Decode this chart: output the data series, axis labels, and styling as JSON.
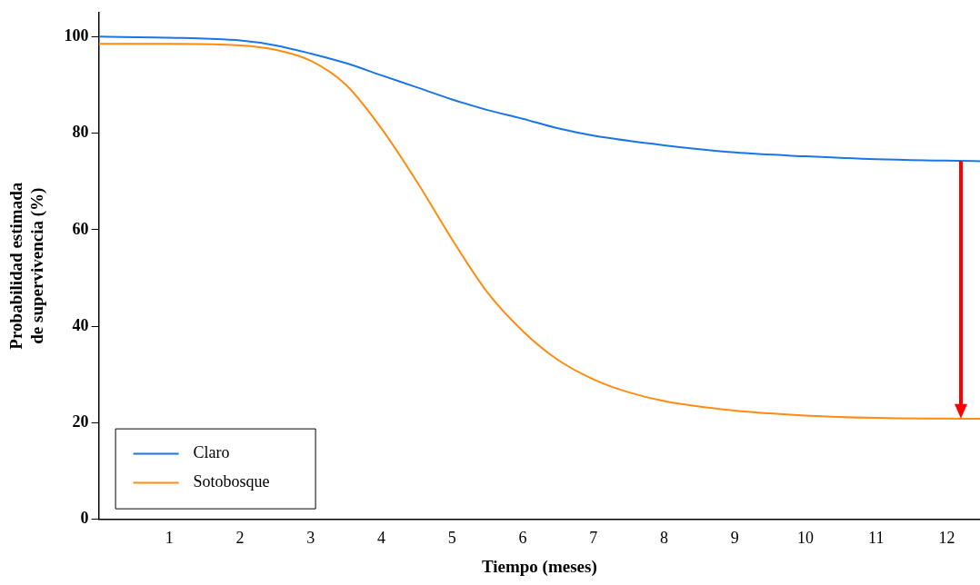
{
  "chart_data": {
    "type": "line",
    "xlabel": "Tiempo (meses)",
    "ylabel": "Probabilidad estimada\nde supervivencia (%)",
    "xlim": [
      0,
      12.47
    ],
    "xticks": [
      {
        "value": 0,
        "label": null
      },
      1,
      2,
      3,
      4,
      5,
      6,
      7,
      8,
      9,
      10,
      11,
      12
    ],
    "ylim": [
      0,
      105
    ],
    "yticks": [
      0,
      20,
      40,
      60,
      80,
      100
    ],
    "grid": false,
    "legend": "bottom left",
    "marker": "none",
    "line_style": "solid",
    "series": [
      {
        "name": "Claro",
        "color": "#1a75e8",
        "x": [
          0,
          1,
          2,
          2.5,
          3,
          3.5,
          4,
          4.5,
          5,
          5.5,
          6,
          6.5,
          7,
          8,
          9,
          10,
          11,
          12.47
        ],
        "values": [
          100,
          99.8,
          99.2,
          98.2,
          96.5,
          94.5,
          92,
          89.5,
          87,
          84.8,
          83,
          81,
          79.5,
          77.5,
          76,
          75.2,
          74.6,
          74.2
        ]
      },
      {
        "name": "Sotobosque",
        "color": "#ff8c10",
        "x": [
          0,
          1,
          2,
          2.5,
          3,
          3.5,
          4,
          4.5,
          5,
          5.5,
          6,
          6.5,
          7,
          7.5,
          8,
          9,
          10,
          11,
          12.47
        ],
        "values": [
          98.5,
          98.5,
          98.2,
          97.3,
          95,
          90,
          81,
          70,
          58,
          47,
          39,
          33,
          29,
          26.3,
          24.5,
          22.5,
          21.5,
          21,
          20.8
        ]
      }
    ]
  }
}
